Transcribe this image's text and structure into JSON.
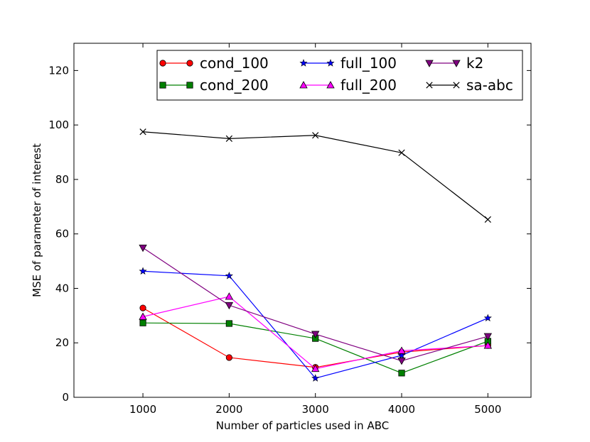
{
  "chart_data": {
    "type": "line",
    "title": "",
    "xlabel": "Number of particles used in ABC",
    "ylabel": "MSE of parameter of interest",
    "xlim": [
      200,
      5500
    ],
    "ylim": [
      0,
      130
    ],
    "xticks": [
      1000,
      2000,
      3000,
      4000,
      5000
    ],
    "yticks": [
      0,
      20,
      40,
      60,
      80,
      100,
      120
    ],
    "grid": false,
    "legend_position": "top-right",
    "x": [
      1000,
      2000,
      3000,
      4000,
      5000
    ],
    "series": [
      {
        "name": "cond_100",
        "color": "#ff0000",
        "marker": "circle",
        "values": [
          32.8,
          14.6,
          11.0,
          16.6,
          19.0
        ]
      },
      {
        "name": "cond_200",
        "color": "#008000",
        "marker": "square",
        "values": [
          27.3,
          27.1,
          21.6,
          8.9,
          20.6
        ]
      },
      {
        "name": "full_100",
        "color": "#0000ff",
        "marker": "star",
        "values": [
          46.3,
          44.6,
          7.0,
          15.4,
          29.1
        ]
      },
      {
        "name": "full_200",
        "color": "#ff00ff",
        "marker": "triangle-up",
        "values": [
          29.6,
          37.0,
          10.5,
          17.1,
          19.0
        ]
      },
      {
        "name": "k2",
        "color": "#800080",
        "marker": "triangle-down",
        "values": [
          54.9,
          33.8,
          23.2,
          13.4,
          22.4
        ]
      },
      {
        "name": "sa-abc",
        "color": "#000000",
        "marker": "x",
        "values": [
          97.5,
          95.0,
          96.2,
          89.8,
          65.3
        ]
      }
    ]
  }
}
